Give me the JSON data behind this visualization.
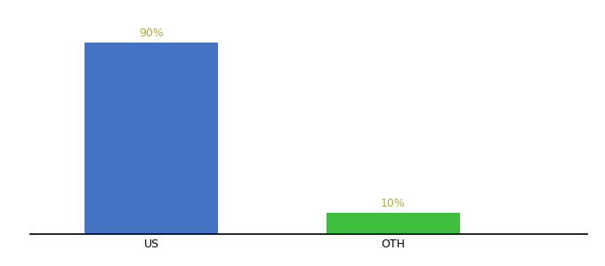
{
  "categories": [
    "US",
    "OTH"
  ],
  "values": [
    90,
    10
  ],
  "bar_colors": [
    "#4472c4",
    "#3dbf3d"
  ],
  "label_texts": [
    "90%",
    "10%"
  ],
  "ylim": [
    0,
    100
  ],
  "background_color": "#ffffff",
  "label_color": "#b5a642",
  "axis_line_color": "#000000",
  "tick_color": "#000000",
  "label_fontsize": 9,
  "tick_fontsize": 9,
  "bar_width": 0.55
}
